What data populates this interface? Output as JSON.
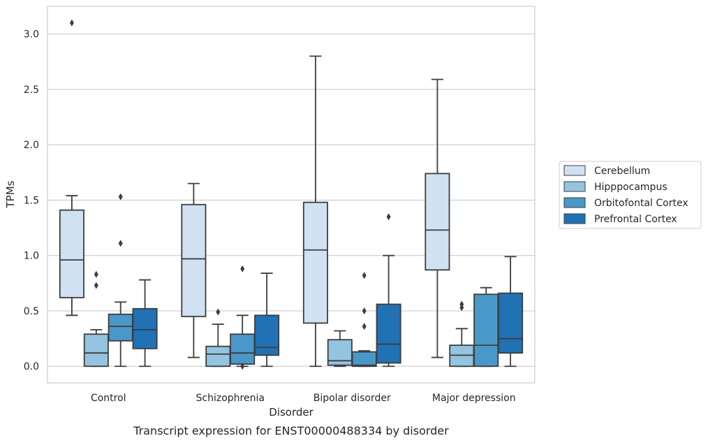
{
  "chart_data": {
    "type": "box",
    "title": "",
    "caption": "Transcript expression for ENST00000488334 by disorder",
    "xlabel": "Disorder",
    "ylabel": "TPMs",
    "ylim": [
      -0.15,
      3.25
    ],
    "yticks": [
      "0.0",
      "0.5",
      "1.0",
      "1.5",
      "2.0",
      "2.5",
      "3.0"
    ],
    "ytick_values": [
      0,
      0.5,
      1.0,
      1.5,
      2.0,
      2.5,
      3.0
    ],
    "grid": "horizontal",
    "legend_position": "right",
    "categories": [
      "Control",
      "Schizophrenia",
      "Bipolar disorder",
      "Major depression"
    ],
    "series": [
      {
        "name": "Cerebellum",
        "color": "#d0e1f2",
        "boxes": [
          {
            "whisker_low": 0.46,
            "q1": 0.62,
            "median": 0.96,
            "q3": 1.41,
            "whisker_high": 1.54,
            "outliers": [
              3.1
            ]
          },
          {
            "whisker_low": 0.08,
            "q1": 0.45,
            "median": 0.97,
            "q3": 1.46,
            "whisker_high": 1.65,
            "outliers": []
          },
          {
            "whisker_low": 0.0,
            "q1": 0.39,
            "median": 1.05,
            "q3": 1.48,
            "whisker_high": 2.8,
            "outliers": []
          },
          {
            "whisker_low": 0.08,
            "q1": 0.87,
            "median": 1.23,
            "q3": 1.74,
            "whisker_high": 2.59,
            "outliers": []
          }
        ]
      },
      {
        "name": "Hipppocampus",
        "color": "#94c4df",
        "boxes": [
          {
            "whisker_low": 0.0,
            "q1": 0.0,
            "median": 0.12,
            "q3": 0.29,
            "whisker_high": 0.33,
            "outliers": [
              0.83,
              0.73
            ]
          },
          {
            "whisker_low": 0.0,
            "q1": 0.0,
            "median": 0.11,
            "q3": 0.18,
            "whisker_high": 0.38,
            "outliers": [
              0.49
            ]
          },
          {
            "whisker_low": 0.0,
            "q1": 0.01,
            "median": 0.05,
            "q3": 0.24,
            "whisker_high": 0.32,
            "outliers": []
          },
          {
            "whisker_low": 0.0,
            "q1": 0.0,
            "median": 0.1,
            "q3": 0.19,
            "whisker_high": 0.34,
            "outliers": [
              0.56,
              0.53
            ]
          }
        ]
      },
      {
        "name": "Orbitofontal Cortex",
        "color": "#4a98c9",
        "boxes": [
          {
            "whisker_low": 0.0,
            "q1": 0.23,
            "median": 0.36,
            "q3": 0.47,
            "whisker_high": 0.58,
            "outliers": [
              1.53,
              1.11
            ]
          },
          {
            "whisker_low": 0.0,
            "q1": 0.02,
            "median": 0.12,
            "q3": 0.29,
            "whisker_high": 0.46,
            "outliers": [
              0.88,
              0.0
            ]
          },
          {
            "whisker_low": 0.0,
            "q1": 0.0,
            "median": 0.01,
            "q3": 0.13,
            "whisker_high": 0.14,
            "outliers": [
              0.82,
              0.5,
              0.36
            ]
          },
          {
            "whisker_low": 0.0,
            "q1": 0.0,
            "median": 0.19,
            "q3": 0.65,
            "whisker_high": 0.71,
            "outliers": []
          }
        ]
      },
      {
        "name": "Prefrontal Cortex",
        "color": "#2171b5",
        "boxes": [
          {
            "whisker_low": 0.0,
            "q1": 0.16,
            "median": 0.33,
            "q3": 0.52,
            "whisker_high": 0.78,
            "outliers": []
          },
          {
            "whisker_low": 0.0,
            "q1": 0.1,
            "median": 0.17,
            "q3": 0.46,
            "whisker_high": 0.84,
            "outliers": []
          },
          {
            "whisker_low": 0.0,
            "q1": 0.03,
            "median": 0.2,
            "q3": 0.56,
            "whisker_high": 1.0,
            "outliers": [
              1.35
            ]
          },
          {
            "whisker_low": 0.0,
            "q1": 0.12,
            "median": 0.25,
            "q3": 0.66,
            "whisker_high": 0.99,
            "outliers": []
          }
        ]
      }
    ]
  }
}
